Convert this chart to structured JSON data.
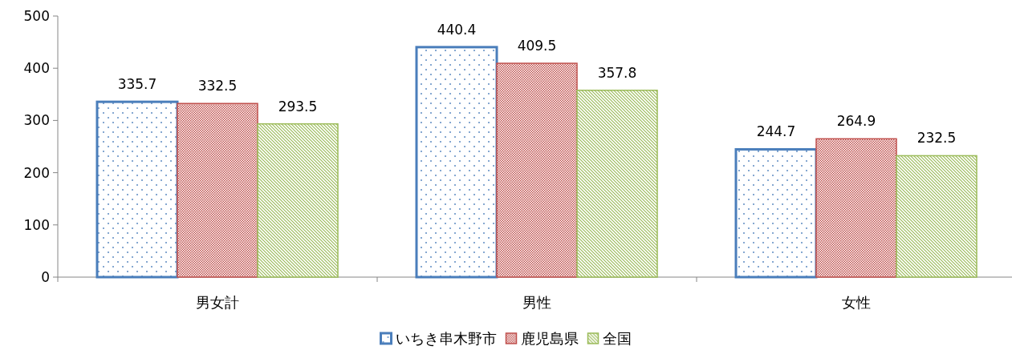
{
  "chart_data": {
    "type": "bar",
    "categories": [
      "男女計",
      "男性",
      "女性"
    ],
    "series": [
      {
        "name": "いちき串木野市",
        "color": "#4a7ebb",
        "values": [
          335.7,
          440.4,
          244.7
        ]
      },
      {
        "name": "鹿児島県",
        "color": "#c0504d",
        "values": [
          332.5,
          409.5,
          264.9
        ]
      },
      {
        "name": "全国",
        "color": "#9bbb59",
        "values": [
          293.5,
          357.8,
          232.5
        ]
      }
    ],
    "ylim": [
      0,
      500
    ],
    "yticks": [
      0,
      100,
      200,
      300,
      400,
      500
    ],
    "data_labels": true,
    "legend": "bottom"
  }
}
